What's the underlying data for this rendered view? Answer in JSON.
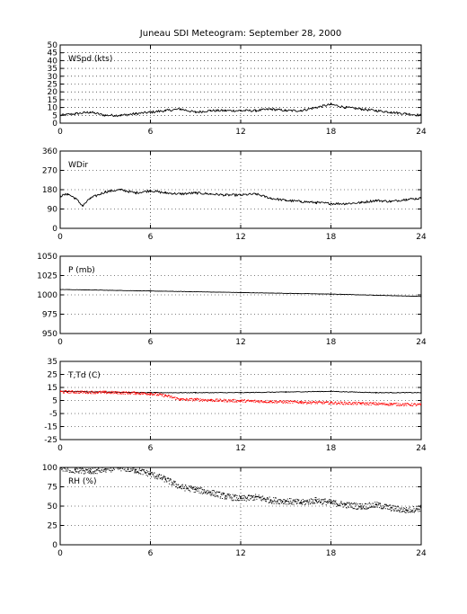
{
  "figure": {
    "title": "Juneau SDI Meteogram: September 28, 2000"
  },
  "chart_data": [
    {
      "type": "line",
      "label": "WSpd (kts)",
      "xlim": [
        0,
        24
      ],
      "xticks": [
        0,
        6,
        12,
        18,
        24
      ],
      "ylim": [
        0,
        50
      ],
      "yticks": [
        0,
        5,
        10,
        15,
        20,
        25,
        30,
        35,
        40,
        45,
        50
      ],
      "grid": true,
      "series": [
        {
          "color": "#000000",
          "style": "line",
          "x": [
            0,
            1,
            2,
            3,
            4,
            5,
            6,
            7,
            8,
            9,
            10,
            11,
            12,
            13,
            14,
            15,
            16,
            17,
            18,
            19,
            20,
            21,
            22,
            23,
            24
          ],
          "y": [
            5,
            6,
            7,
            5,
            5,
            6,
            7,
            8,
            9,
            7,
            8,
            8,
            8,
            8,
            9,
            8,
            8,
            10,
            12,
            10,
            9,
            8,
            7,
            6,
            5
          ]
        }
      ]
    },
    {
      "type": "line",
      "label": "WDir",
      "xlim": [
        0,
        24
      ],
      "xticks": [
        0,
        6,
        12,
        18,
        24
      ],
      "ylim": [
        0,
        360
      ],
      "yticks": [
        0,
        90,
        180,
        270,
        360
      ],
      "grid": true,
      "series": [
        {
          "color": "#000000",
          "style": "line",
          "x": [
            0,
            0.5,
            1,
            1.5,
            2,
            3,
            4,
            5,
            6,
            7,
            8,
            9,
            10,
            11,
            12,
            13,
            14,
            15,
            16,
            17,
            18,
            19,
            20,
            21,
            22,
            23,
            24
          ],
          "y": [
            150,
            160,
            140,
            105,
            140,
            170,
            180,
            165,
            175,
            165,
            160,
            165,
            160,
            155,
            155,
            160,
            140,
            130,
            125,
            120,
            115,
            115,
            120,
            130,
            125,
            135,
            140
          ]
        }
      ]
    },
    {
      "type": "line",
      "label": "P (mb)",
      "xlim": [
        0,
        24
      ],
      "xticks": [
        0,
        6,
        12,
        18,
        24
      ],
      "ylim": [
        950,
        1050
      ],
      "yticks": [
        950,
        975,
        1000,
        1025,
        1050
      ],
      "grid": true,
      "series": [
        {
          "color": "#000000",
          "style": "line",
          "x": [
            0,
            6,
            12,
            18,
            24
          ],
          "y": [
            1007,
            1005,
            1003,
            1001,
            998
          ]
        }
      ]
    },
    {
      "type": "line",
      "label": "T,Td (C)",
      "xlim": [
        0,
        24
      ],
      "xticks": [
        0,
        6,
        12,
        18,
        24
      ],
      "ylim": [
        -25,
        35
      ],
      "yticks": [
        -25,
        -15,
        -5,
        5,
        15,
        25,
        35
      ],
      "grid": true,
      "series": [
        {
          "color": "#000000",
          "style": "line",
          "x": [
            0,
            3,
            6,
            9,
            12,
            15,
            18,
            21,
            24
          ],
          "y": [
            12,
            11.5,
            11,
            11,
            11,
            11.5,
            12,
            11,
            11
          ]
        },
        {
          "color": "#ff0000",
          "style": "dots",
          "x": [
            0,
            3,
            5,
            6,
            7,
            8,
            9,
            10,
            12,
            14,
            16,
            18,
            20,
            22,
            24
          ],
          "y": [
            12,
            11.5,
            11,
            10.5,
            9,
            6,
            6,
            5.5,
            5,
            4.5,
            4,
            3.5,
            3,
            2.5,
            2
          ]
        }
      ]
    },
    {
      "type": "scatter",
      "label": "RH (%)",
      "xlim": [
        0,
        24
      ],
      "xticks": [
        0,
        6,
        12,
        18,
        24
      ],
      "ylim": [
        0,
        100
      ],
      "yticks": [
        0,
        25,
        50,
        75,
        100
      ],
      "grid": true,
      "series": [
        {
          "color": "#000000",
          "style": "dots",
          "x": [
            0,
            1,
            2,
            3,
            4,
            5,
            6,
            7,
            8,
            9,
            10,
            11,
            12,
            13,
            14,
            15,
            16,
            17,
            18,
            19,
            20,
            21,
            22,
            23,
            24
          ],
          "y": [
            100,
            97,
            95,
            98,
            100,
            97,
            92,
            85,
            75,
            72,
            68,
            63,
            60,
            62,
            58,
            57,
            55,
            58,
            55,
            52,
            50,
            52,
            48,
            45,
            48
          ]
        }
      ]
    }
  ]
}
